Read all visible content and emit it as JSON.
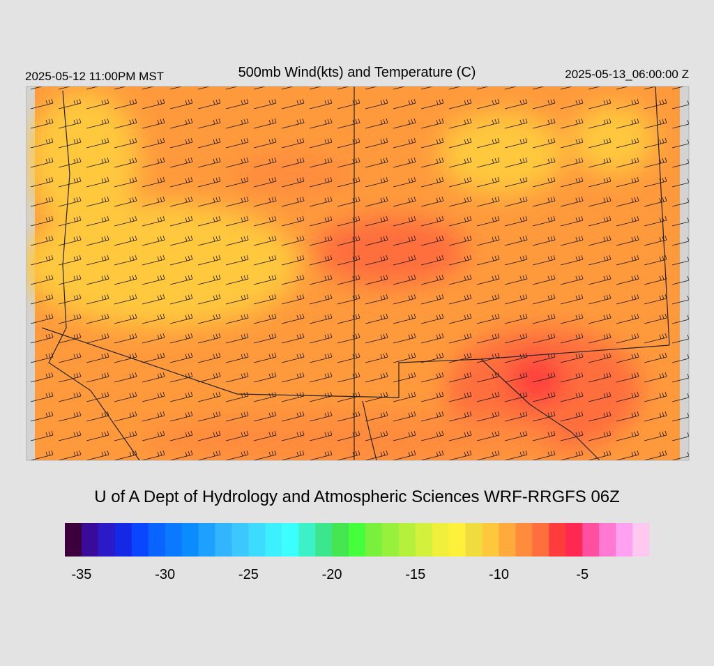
{
  "header": {
    "left": "2025-05-12 11:00PM MST",
    "title": "500mb Wind(kts) and Temperature (C)",
    "right": "2025-05-13_06:00:00 Z"
  },
  "credit": "U of A Dept of Hydrology and Atmospheric Sciences WRF-RRGFS 06Z",
  "colorbar": {
    "range": [
      -36,
      -1
    ],
    "colors": [
      "#3c003c",
      "#3a0a9a",
      "#2a1ac8",
      "#1428e6",
      "#0a46ff",
      "#0a64ff",
      "#0a78ff",
      "#0a8cff",
      "#1ea0ff",
      "#32b4ff",
      "#3cc8ff",
      "#3cdcff",
      "#3cf0ff",
      "#3cffff",
      "#3cf0c8",
      "#3ce68c",
      "#46e650",
      "#46ff3c",
      "#78f03c",
      "#96f03c",
      "#b4f03c",
      "#d2f03c",
      "#f0f03c",
      "#fff03c",
      "#f0dc3c",
      "#ffc83c",
      "#ffaa3c",
      "#ff8c3c",
      "#ff6e3c",
      "#ff3c3c",
      "#ff2850",
      "#ff50a0",
      "#ff78d2",
      "#ffa0f0",
      "#ffc8f0"
    ],
    "ticks": [
      -35,
      -30,
      -25,
      -20,
      -15,
      -10,
      -5
    ]
  }
}
